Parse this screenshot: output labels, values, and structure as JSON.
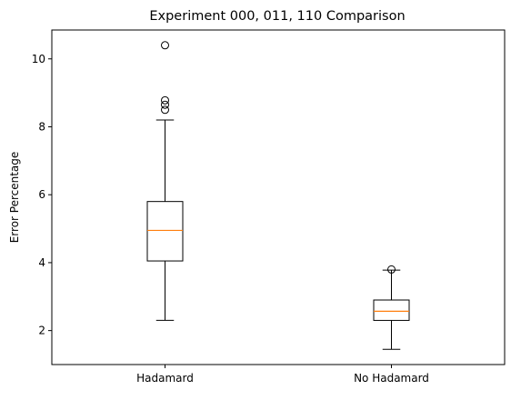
{
  "chart_data": {
    "type": "box",
    "title": "Experiment 000, 011, 110 Comparison",
    "xlabel": "",
    "ylabel": "Error Percentage",
    "ylim": [
      1.0,
      10.85
    ],
    "y_ticks": [
      2,
      4,
      6,
      8,
      10
    ],
    "grid": false,
    "categories": [
      "Hadamard",
      "No Hadamard"
    ],
    "boxes": [
      {
        "category": "Hadamard",
        "whisker_low": 2.3,
        "q1": 4.05,
        "median": 4.95,
        "q3": 5.8,
        "whisker_high": 8.2,
        "outliers": [
          8.5,
          8.65,
          8.78,
          10.4
        ]
      },
      {
        "category": "No Hadamard",
        "whisker_low": 1.45,
        "q1": 2.3,
        "median": 2.57,
        "q3": 2.9,
        "whisker_high": 3.78,
        "outliers": [
          3.8
        ]
      }
    ],
    "colors": {
      "box": "#000000",
      "median": "#ff7f0e",
      "outlier": "#000000"
    }
  }
}
